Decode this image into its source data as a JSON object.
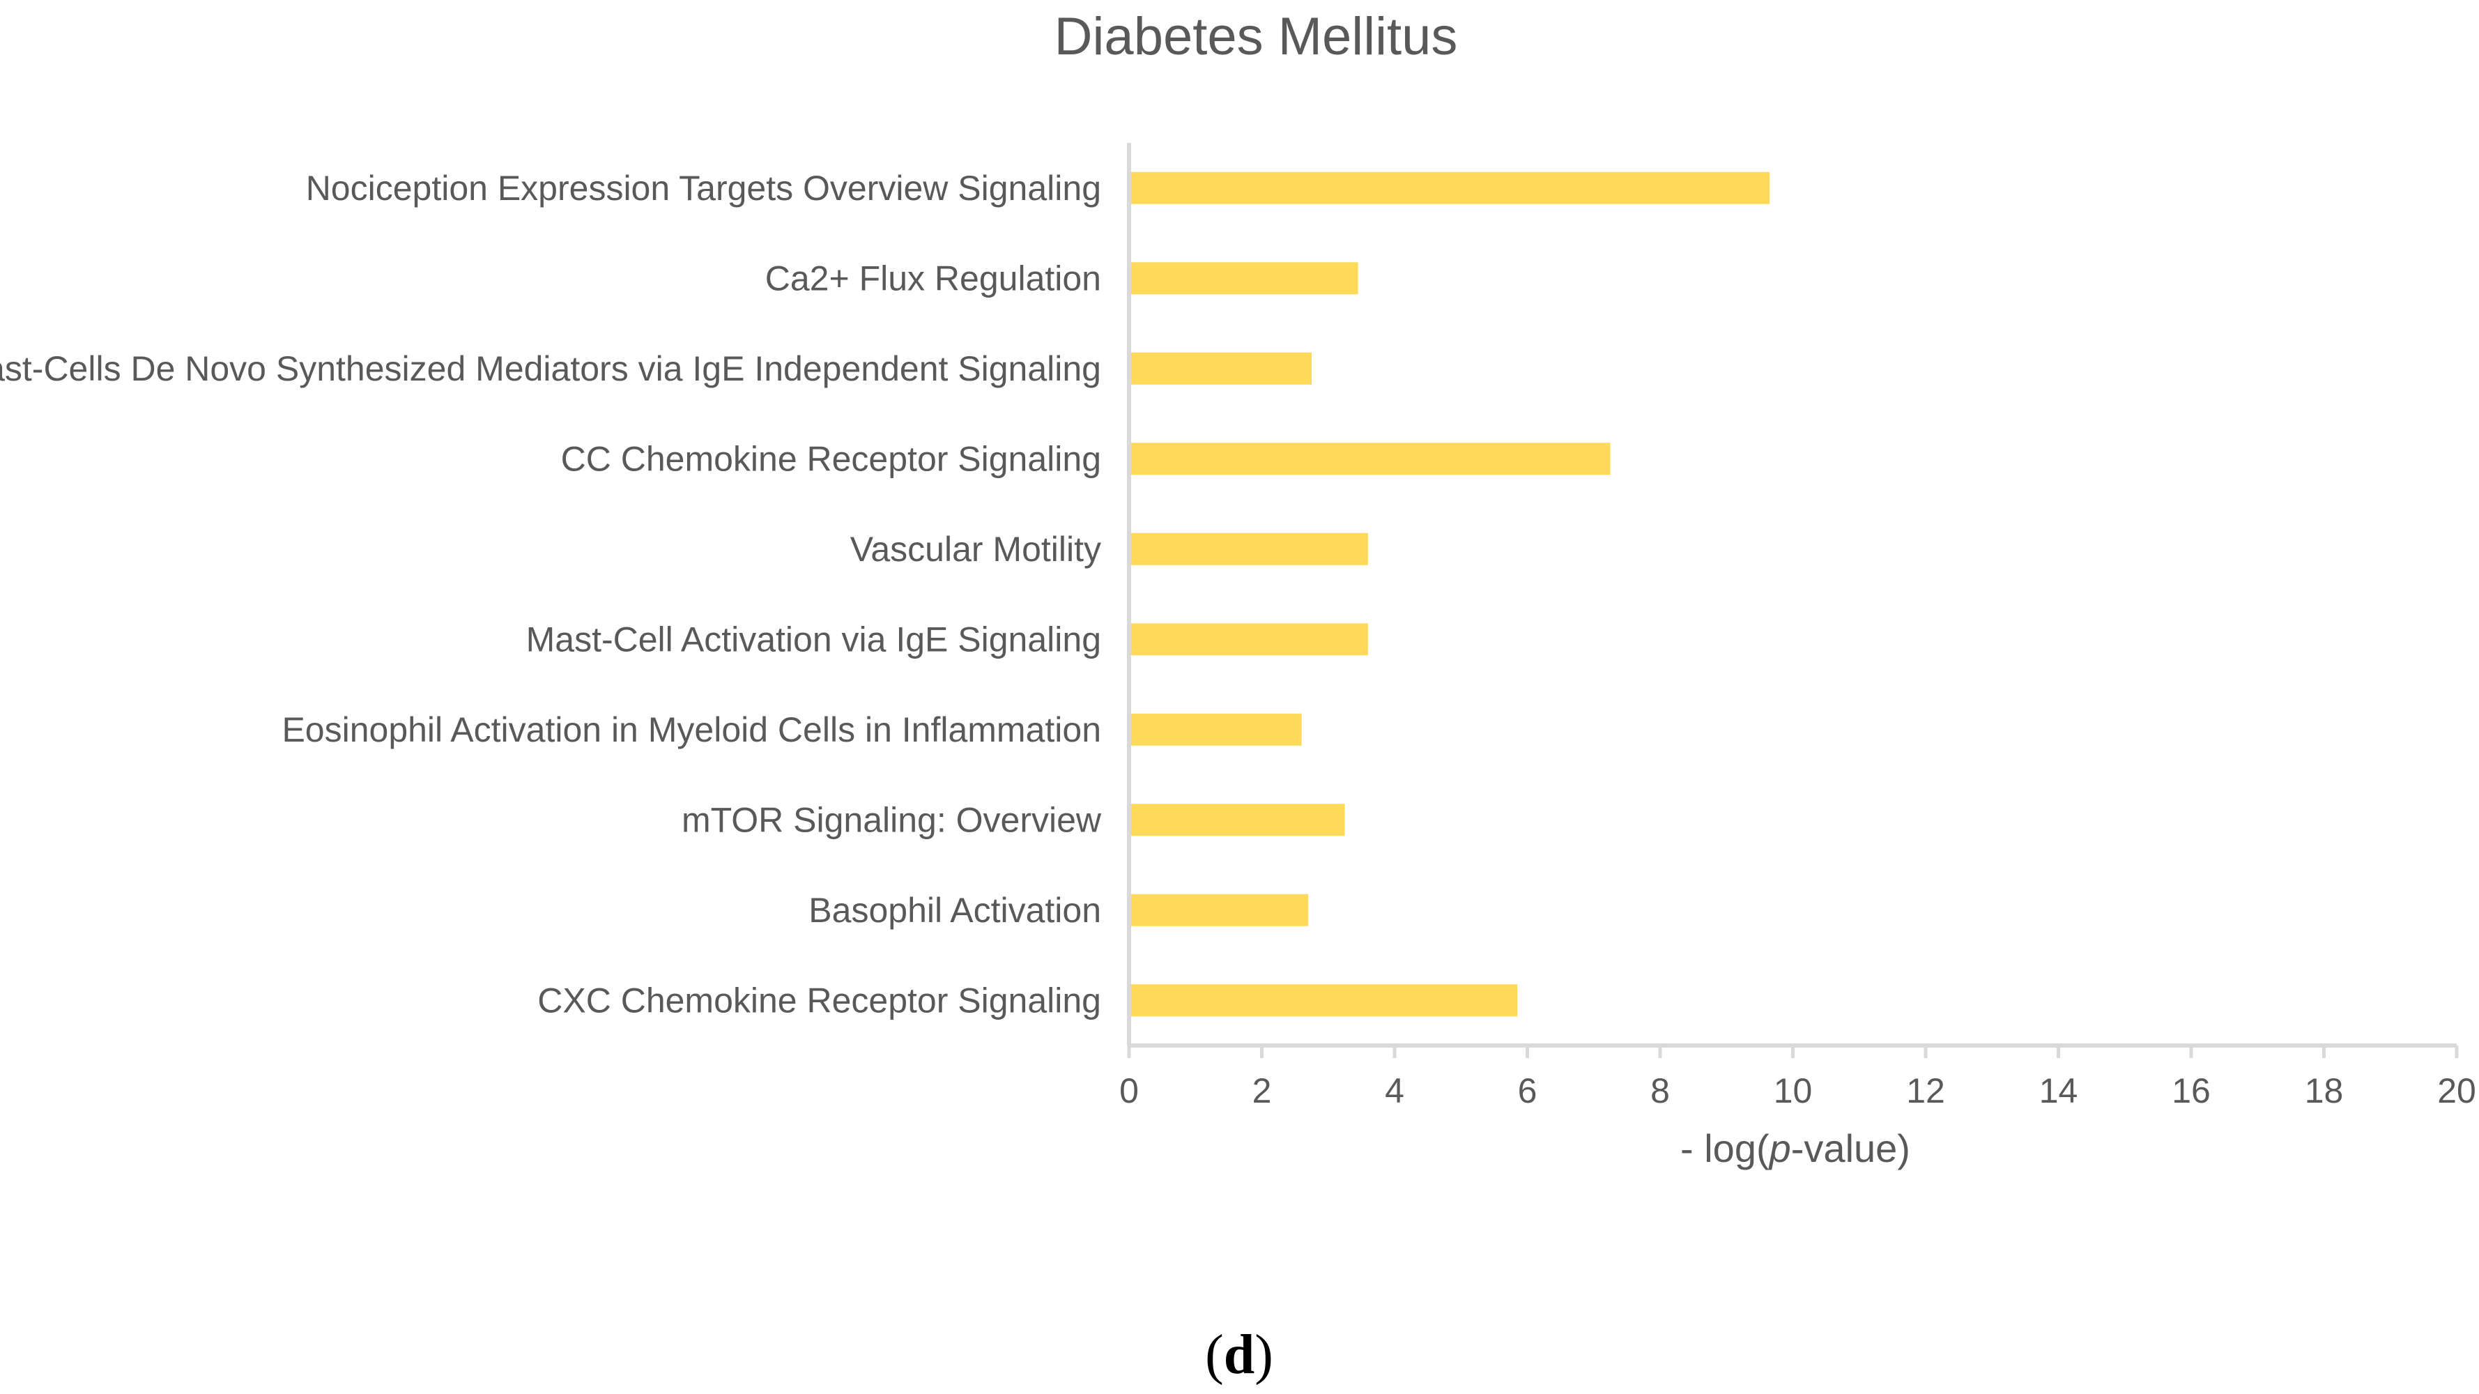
{
  "chart_data": {
    "type": "bar",
    "orientation": "horizontal",
    "title": "Diabetes Mellitus",
    "xlabel_prefix": "- log(",
    "xlabel_italic": "p",
    "xlabel_suffix": "-value)",
    "ylabel": "",
    "xlim": [
      0,
      20
    ],
    "xticks": [
      0,
      2,
      4,
      6,
      8,
      10,
      12,
      14,
      16,
      18,
      20
    ],
    "grid": false,
    "legend": "none",
    "bar_color": "#FFD95A",
    "axis_color": "#D9D9D9",
    "categories": [
      "Nociception Expression Targets Overview Signaling",
      "Ca2+ Flux Regulation",
      "Mast-Cells De Novo Synthesized Mediators via IgE Independent Signaling",
      "CC Chemokine Receptor Signaling",
      "Vascular Motility",
      "Mast-Cell Activation via IgE Signaling",
      "Eosinophil Activation in Myeloid Cells in Inflammation",
      "mTOR Signaling: Overview",
      "Basophil Activation",
      "CXC Chemokine Receptor Signaling"
    ],
    "values": [
      9.65,
      3.45,
      2.75,
      7.25,
      3.6,
      3.6,
      2.6,
      3.25,
      2.7,
      5.85
    ]
  },
  "panel_label": {
    "open": "(",
    "letter": "d",
    "close": ")"
  }
}
